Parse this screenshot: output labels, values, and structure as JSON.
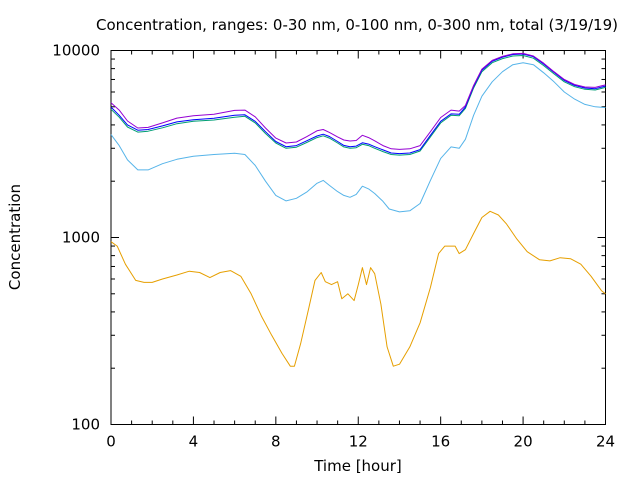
{
  "chart_data": {
    "type": "line",
    "title": "Concentration, ranges: 0-30 nm, 0-100 nm, 0-300 nm, total (3/19/19)",
    "xlabel": "Time [hour]",
    "ylabel": "Concentration",
    "xlim": [
      0,
      24
    ],
    "ylim": [
      100,
      10000
    ],
    "y_scale": "log",
    "x_ticks": [
      0,
      4,
      8,
      12,
      16,
      20,
      24
    ],
    "y_ticks": [
      {
        "value": 100,
        "label": "100"
      },
      {
        "value": 1000,
        "label": "1000"
      },
      {
        "value": 10000,
        "label": "10000"
      }
    ],
    "grid": false,
    "series": [
      {
        "color": "#e69f00",
        "points": [
          [
            0,
            950
          ],
          [
            0.3,
            900
          ],
          [
            0.7,
            720
          ],
          [
            1.2,
            590
          ],
          [
            1.6,
            575
          ],
          [
            2.0,
            575
          ],
          [
            2.5,
            600
          ],
          [
            3.2,
            630
          ],
          [
            3.8,
            660
          ],
          [
            4.3,
            650
          ],
          [
            4.8,
            610
          ],
          [
            5.3,
            650
          ],
          [
            5.8,
            665
          ],
          [
            6.3,
            620
          ],
          [
            6.8,
            500
          ],
          [
            7.3,
            380
          ],
          [
            7.8,
            300
          ],
          [
            8.3,
            240
          ],
          [
            8.7,
            205
          ],
          [
            8.9,
            205
          ],
          [
            9.2,
            270
          ],
          [
            9.6,
            420
          ],
          [
            9.9,
            590
          ],
          [
            10.2,
            650
          ],
          [
            10.4,
            580
          ],
          [
            10.7,
            560
          ],
          [
            11.0,
            580
          ],
          [
            11.2,
            470
          ],
          [
            11.5,
            500
          ],
          [
            11.8,
            460
          ],
          [
            12.0,
            560
          ],
          [
            12.2,
            690
          ],
          [
            12.4,
            560
          ],
          [
            12.6,
            690
          ],
          [
            12.8,
            640
          ],
          [
            13.1,
            440
          ],
          [
            13.4,
            260
          ],
          [
            13.7,
            205
          ],
          [
            14.0,
            210
          ],
          [
            14.5,
            260
          ],
          [
            15.0,
            350
          ],
          [
            15.5,
            540
          ],
          [
            15.9,
            820
          ],
          [
            16.2,
            900
          ],
          [
            16.7,
            900
          ],
          [
            16.9,
            820
          ],
          [
            17.2,
            860
          ],
          [
            17.6,
            1050
          ],
          [
            18.0,
            1280
          ],
          [
            18.4,
            1380
          ],
          [
            18.8,
            1320
          ],
          [
            19.2,
            1180
          ],
          [
            19.7,
            980
          ],
          [
            20.2,
            840
          ],
          [
            20.8,
            760
          ],
          [
            21.3,
            750
          ],
          [
            21.8,
            780
          ],
          [
            22.3,
            770
          ],
          [
            22.8,
            720
          ],
          [
            23.3,
            620
          ],
          [
            23.8,
            520
          ],
          [
            24,
            500
          ]
        ]
      },
      {
        "color": "#56b4e9",
        "points": [
          [
            0,
            3550
          ],
          [
            0.4,
            3100
          ],
          [
            0.8,
            2600
          ],
          [
            1.3,
            2300
          ],
          [
            1.8,
            2300
          ],
          [
            2.5,
            2480
          ],
          [
            3.2,
            2620
          ],
          [
            4.0,
            2720
          ],
          [
            5.0,
            2780
          ],
          [
            6.0,
            2820
          ],
          [
            6.5,
            2780
          ],
          [
            7.0,
            2430
          ],
          [
            7.5,
            2000
          ],
          [
            8.0,
            1680
          ],
          [
            8.5,
            1570
          ],
          [
            9.0,
            1620
          ],
          [
            9.5,
            1750
          ],
          [
            10.0,
            1950
          ],
          [
            10.3,
            2020
          ],
          [
            10.6,
            1900
          ],
          [
            11.0,
            1760
          ],
          [
            11.3,
            1680
          ],
          [
            11.6,
            1640
          ],
          [
            11.9,
            1700
          ],
          [
            12.2,
            1880
          ],
          [
            12.5,
            1820
          ],
          [
            12.8,
            1720
          ],
          [
            13.2,
            1560
          ],
          [
            13.5,
            1420
          ],
          [
            14.0,
            1370
          ],
          [
            14.5,
            1390
          ],
          [
            15.0,
            1520
          ],
          [
            15.5,
            2020
          ],
          [
            16.0,
            2650
          ],
          [
            16.5,
            3050
          ],
          [
            16.9,
            3000
          ],
          [
            17.2,
            3350
          ],
          [
            17.6,
            4500
          ],
          [
            18.0,
            5700
          ],
          [
            18.5,
            6800
          ],
          [
            19.0,
            7700
          ],
          [
            19.5,
            8400
          ],
          [
            20.0,
            8600
          ],
          [
            20.5,
            8400
          ],
          [
            21.0,
            7600
          ],
          [
            21.5,
            6800
          ],
          [
            22.0,
            6000
          ],
          [
            22.5,
            5500
          ],
          [
            23.0,
            5150
          ],
          [
            23.5,
            5000
          ],
          [
            24,
            4950
          ]
        ]
      },
      {
        "color": "#009e73",
        "points": [
          [
            0,
            4850
          ],
          [
            0.4,
            4400
          ],
          [
            0.8,
            3900
          ],
          [
            1.3,
            3660
          ],
          [
            1.8,
            3700
          ],
          [
            2.5,
            3860
          ],
          [
            3.2,
            4060
          ],
          [
            4.0,
            4180
          ],
          [
            5.0,
            4250
          ],
          [
            6.0,
            4400
          ],
          [
            6.5,
            4450
          ],
          [
            7.0,
            4100
          ],
          [
            7.5,
            3600
          ],
          [
            8.0,
            3200
          ],
          [
            8.5,
            3000
          ],
          [
            9.0,
            3040
          ],
          [
            9.5,
            3220
          ],
          [
            10.0,
            3420
          ],
          [
            10.3,
            3500
          ],
          [
            10.6,
            3400
          ],
          [
            11.0,
            3200
          ],
          [
            11.3,
            3050
          ],
          [
            11.6,
            3000
          ],
          [
            11.9,
            3020
          ],
          [
            12.2,
            3150
          ],
          [
            12.5,
            3100
          ],
          [
            12.8,
            3000
          ],
          [
            13.2,
            2880
          ],
          [
            13.6,
            2780
          ],
          [
            14.0,
            2760
          ],
          [
            14.5,
            2780
          ],
          [
            15.0,
            2900
          ],
          [
            15.5,
            3450
          ],
          [
            16.0,
            4100
          ],
          [
            16.5,
            4500
          ],
          [
            16.9,
            4480
          ],
          [
            17.2,
            4900
          ],
          [
            17.6,
            6300
          ],
          [
            18.0,
            7700
          ],
          [
            18.5,
            8600
          ],
          [
            19.0,
            9050
          ],
          [
            19.5,
            9350
          ],
          [
            20.0,
            9400
          ],
          [
            20.5,
            9100
          ],
          [
            21.0,
            8300
          ],
          [
            21.5,
            7500
          ],
          [
            22.0,
            6800
          ],
          [
            22.5,
            6400
          ],
          [
            23.0,
            6200
          ],
          [
            23.5,
            6150
          ],
          [
            24,
            6350
          ]
        ]
      },
      {
        "color": "#0000ff",
        "points": [
          [
            0,
            4980
          ],
          [
            0.4,
            4500
          ],
          [
            0.8,
            4000
          ],
          [
            1.3,
            3750
          ],
          [
            1.8,
            3780
          ],
          [
            2.5,
            3950
          ],
          [
            3.2,
            4150
          ],
          [
            4.0,
            4260
          ],
          [
            5.0,
            4340
          ],
          [
            6.0,
            4500
          ],
          [
            6.5,
            4530
          ],
          [
            7.0,
            4180
          ],
          [
            7.5,
            3680
          ],
          [
            8.0,
            3260
          ],
          [
            8.5,
            3060
          ],
          [
            9.0,
            3100
          ],
          [
            9.5,
            3290
          ],
          [
            10.0,
            3490
          ],
          [
            10.3,
            3570
          ],
          [
            10.6,
            3470
          ],
          [
            11.0,
            3260
          ],
          [
            11.3,
            3110
          ],
          [
            11.6,
            3060
          ],
          [
            11.9,
            3080
          ],
          [
            12.2,
            3210
          ],
          [
            12.5,
            3160
          ],
          [
            12.8,
            3060
          ],
          [
            13.2,
            2940
          ],
          [
            13.6,
            2830
          ],
          [
            14.0,
            2810
          ],
          [
            14.5,
            2830
          ],
          [
            15.0,
            2950
          ],
          [
            15.5,
            3520
          ],
          [
            16.0,
            4180
          ],
          [
            16.5,
            4580
          ],
          [
            16.9,
            4560
          ],
          [
            17.2,
            4990
          ],
          [
            17.6,
            6420
          ],
          [
            18.0,
            7850
          ],
          [
            18.5,
            8760
          ],
          [
            19.0,
            9220
          ],
          [
            19.5,
            9520
          ],
          [
            20.0,
            9580
          ],
          [
            20.5,
            9260
          ],
          [
            21.0,
            8460
          ],
          [
            21.5,
            7640
          ],
          [
            22.0,
            6920
          ],
          [
            22.5,
            6510
          ],
          [
            23.0,
            6300
          ],
          [
            23.5,
            6250
          ],
          [
            24,
            6450
          ]
        ]
      },
      {
        "color": "#9400d3",
        "points": [
          [
            0,
            5250
          ],
          [
            0.4,
            4800
          ],
          [
            0.8,
            4200
          ],
          [
            1.3,
            3850
          ],
          [
            1.8,
            3880
          ],
          [
            2.5,
            4100
          ],
          [
            3.2,
            4350
          ],
          [
            4.0,
            4480
          ],
          [
            5.0,
            4560
          ],
          [
            6.0,
            4780
          ],
          [
            6.5,
            4800
          ],
          [
            7.0,
            4420
          ],
          [
            7.5,
            3850
          ],
          [
            8.0,
            3400
          ],
          [
            8.5,
            3200
          ],
          [
            9.0,
            3240
          ],
          [
            9.5,
            3460
          ],
          [
            10.0,
            3720
          ],
          [
            10.3,
            3780
          ],
          [
            10.6,
            3650
          ],
          [
            11.0,
            3450
          ],
          [
            11.3,
            3320
          ],
          [
            11.6,
            3280
          ],
          [
            11.9,
            3300
          ],
          [
            12.2,
            3520
          ],
          [
            12.5,
            3420
          ],
          [
            12.8,
            3290
          ],
          [
            13.2,
            3100
          ],
          [
            13.6,
            2980
          ],
          [
            14.0,
            2960
          ],
          [
            14.5,
            2980
          ],
          [
            15.0,
            3100
          ],
          [
            15.5,
            3680
          ],
          [
            16.0,
            4380
          ],
          [
            16.5,
            4800
          ],
          [
            16.9,
            4740
          ],
          [
            17.2,
            5080
          ],
          [
            17.6,
            6500
          ],
          [
            18.0,
            7950
          ],
          [
            18.5,
            8850
          ],
          [
            19.0,
            9300
          ],
          [
            19.5,
            9600
          ],
          [
            20.0,
            9650
          ],
          [
            20.5,
            9350
          ],
          [
            21.0,
            8550
          ],
          [
            21.5,
            7700
          ],
          [
            22.0,
            7000
          ],
          [
            22.5,
            6580
          ],
          [
            23.0,
            6380
          ],
          [
            23.5,
            6350
          ],
          [
            24,
            6550
          ]
        ]
      }
    ]
  }
}
